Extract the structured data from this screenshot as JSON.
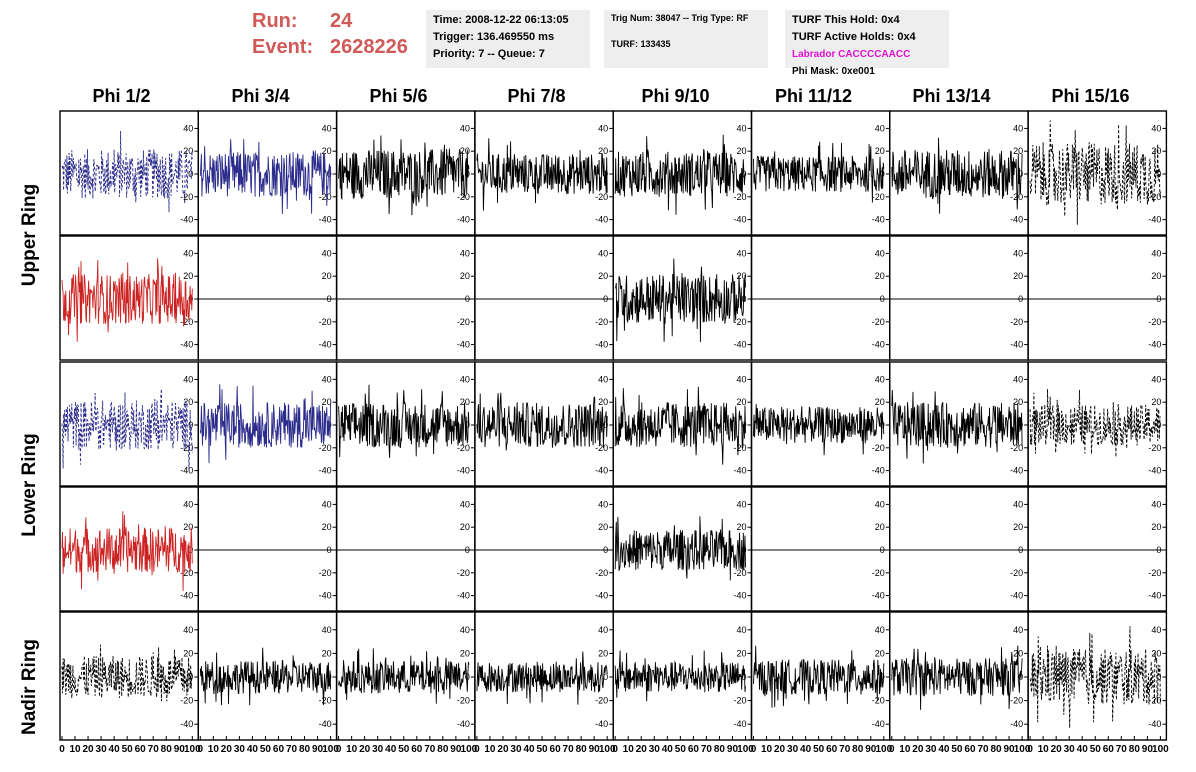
{
  "header": {
    "run_label": "Run:",
    "run_value": "24",
    "event_label": "Event:",
    "event_value": "2628226",
    "panel1": [
      "Time: 2008-12-22 06:13:05",
      "Trigger: 136.469550 ms",
      "Priority: 7 -- Queue: 7"
    ],
    "panel2": [
      "Trig Num: 38047 -- Trig Type: RF",
      "TURF: 133435"
    ],
    "panel3": [
      "TURF This Hold: 0x4",
      "TURF Active Holds: 0x4",
      "Labrador CACCCCAACC",
      "Phi Mask: 0xe001"
    ]
  },
  "colors": {
    "run_text": "#d05a58",
    "labrador_text": "#e010d0",
    "trace_blue": "#2b2b8c",
    "trace_red": "#cc2222",
    "trace_black": "#000000",
    "panel_bg": "#eeeeee"
  },
  "chart_data": {
    "type": "line",
    "columns": [
      "Phi 1/2",
      "Phi 3/4",
      "Phi 5/6",
      "Phi 7/8",
      "Phi 9/10",
      "Phi 11/12",
      "Phi 13/14",
      "Phi 15/16"
    ],
    "rows": [
      "Upper Ring",
      "Upper Ring",
      "Lower Ring",
      "Lower Ring",
      "Nadir Ring"
    ],
    "row_labels": [
      "Upper Ring",
      "Lower Ring",
      "Nadir Ring"
    ],
    "xlim": [
      0,
      100
    ],
    "ylim": [
      -50,
      50
    ],
    "y_ticks": [
      -40,
      -20,
      0,
      20,
      40
    ],
    "x_tick_labels": [
      "0",
      "10",
      "20",
      "30",
      "40",
      "50",
      "60",
      "70",
      "80",
      "90",
      "100"
    ],
    "cells": [
      [
        {
          "style": "blue-dash",
          "amp": 22
        },
        {
          "style": "blue",
          "amp": 20
        },
        {
          "style": "black",
          "amp": 22
        },
        {
          "style": "black",
          "amp": 18
        },
        {
          "style": "black",
          "amp": 20
        },
        {
          "style": "black",
          "amp": 16
        },
        {
          "style": "black",
          "amp": 22
        },
        {
          "style": "black-dash",
          "amp": 28
        }
      ],
      [
        {
          "style": "red",
          "amp": 22
        },
        {
          "style": "flat",
          "amp": 0
        },
        {
          "style": "flat",
          "amp": 0
        },
        {
          "style": "flat",
          "amp": 0
        },
        {
          "style": "black",
          "amp": 22
        },
        {
          "style": "flat",
          "amp": 0
        },
        {
          "style": "flat",
          "amp": 0
        },
        {
          "style": "flat",
          "amp": 0
        }
      ],
      [
        {
          "style": "blue-dash",
          "amp": 22
        },
        {
          "style": "blue",
          "amp": 20
        },
        {
          "style": "black",
          "amp": 20
        },
        {
          "style": "black",
          "amp": 20
        },
        {
          "style": "black",
          "amp": 20
        },
        {
          "style": "black",
          "amp": 16
        },
        {
          "style": "black",
          "amp": 20
        },
        {
          "style": "black-dash",
          "amp": 18
        }
      ],
      [
        {
          "style": "red",
          "amp": 20
        },
        {
          "style": "flat",
          "amp": 0
        },
        {
          "style": "flat",
          "amp": 0
        },
        {
          "style": "flat",
          "amp": 0
        },
        {
          "style": "black",
          "amp": 18
        },
        {
          "style": "flat",
          "amp": 0
        },
        {
          "style": "flat",
          "amp": 0
        },
        {
          "style": "flat",
          "amp": 0
        }
      ],
      [
        {
          "style": "black-dash",
          "amp": 18
        },
        {
          "style": "black",
          "amp": 14
        },
        {
          "style": "black",
          "amp": 14
        },
        {
          "style": "black",
          "amp": 13
        },
        {
          "style": "black",
          "amp": 13
        },
        {
          "style": "black",
          "amp": 15
        },
        {
          "style": "black",
          "amp": 16
        },
        {
          "style": "black-dash",
          "amp": 24
        }
      ]
    ]
  }
}
